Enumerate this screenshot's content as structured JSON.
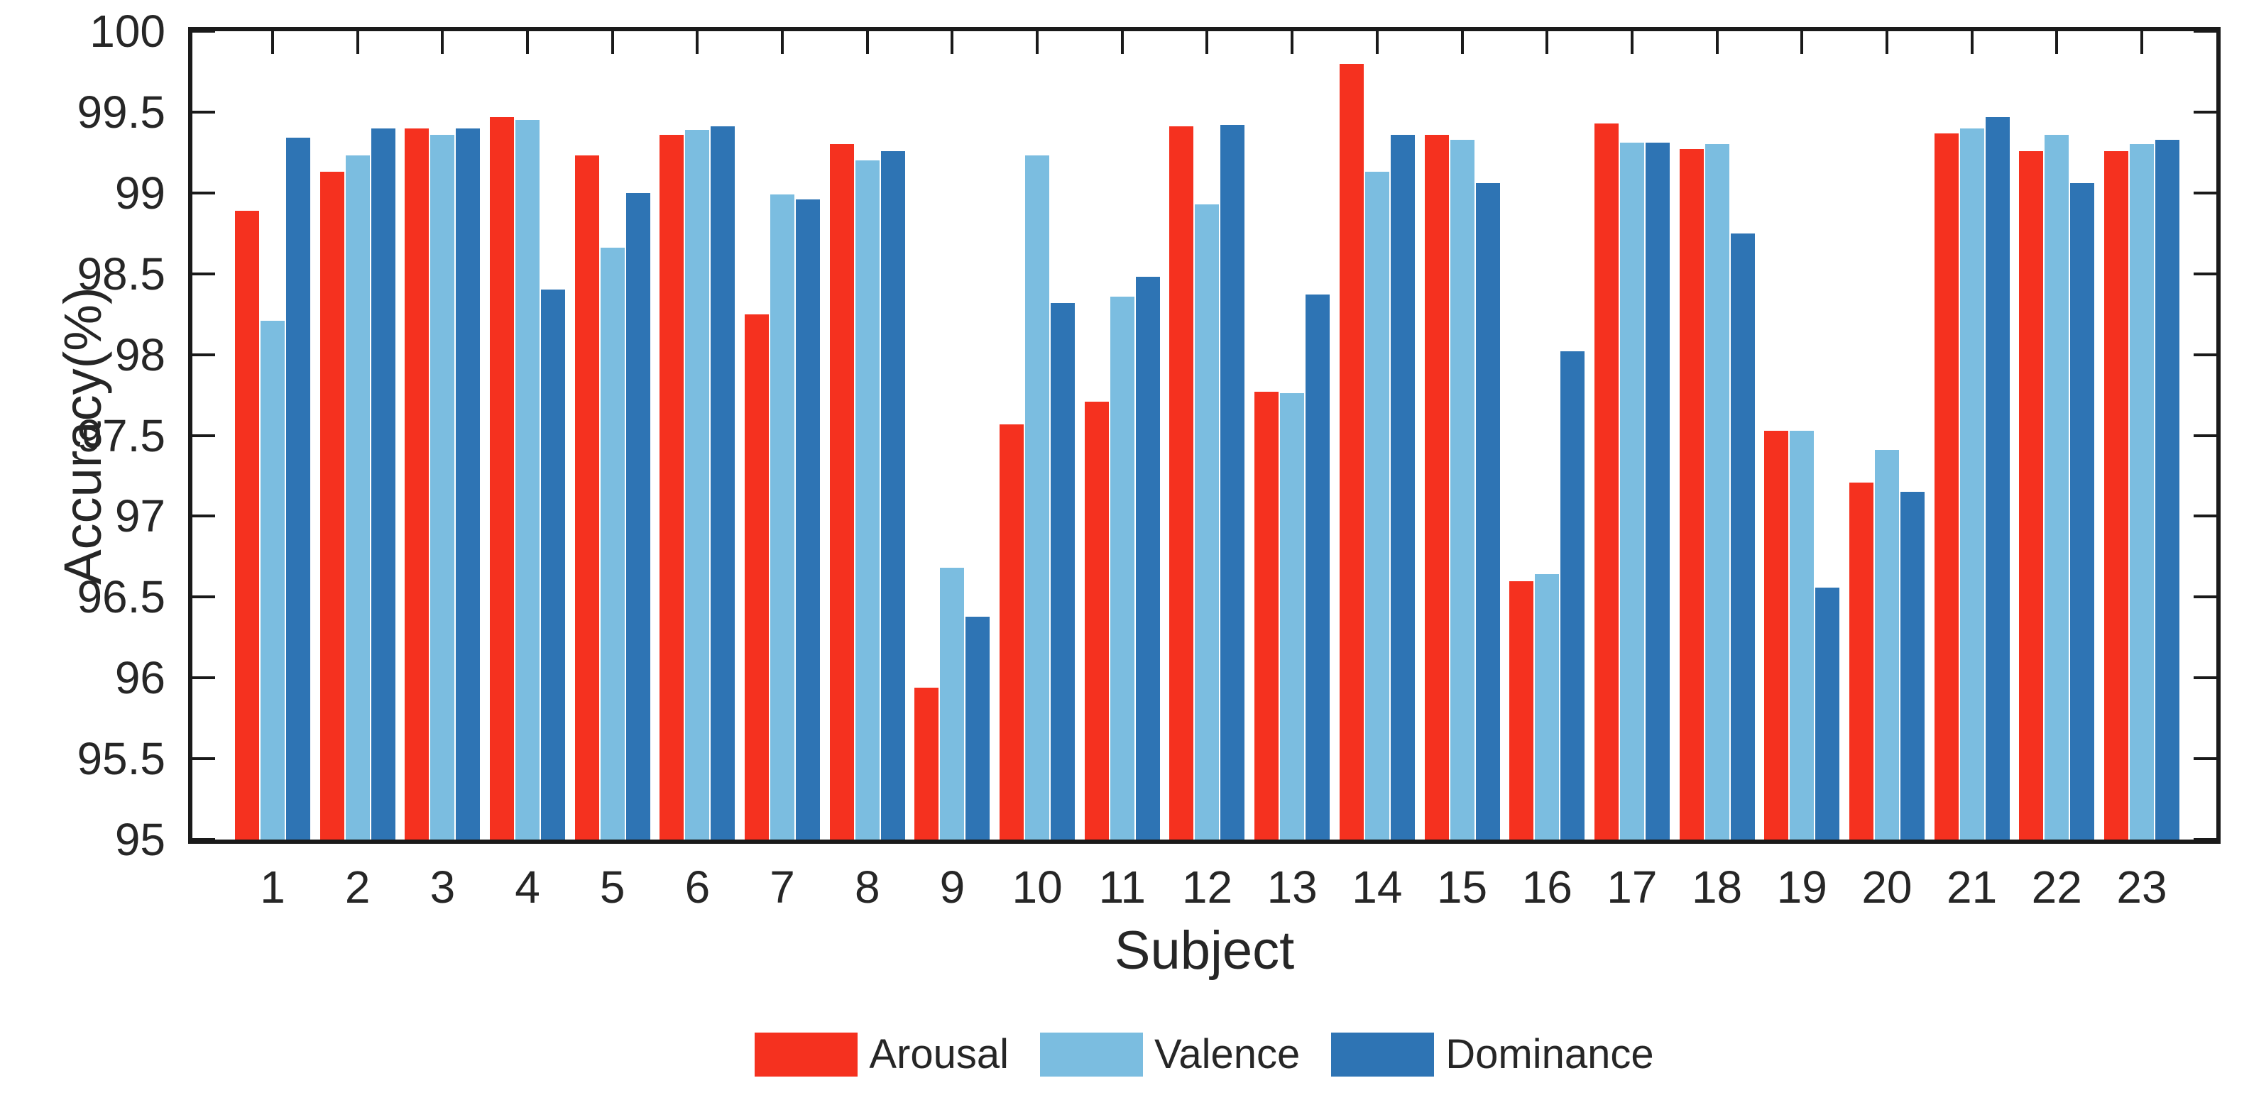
{
  "chart_data": {
    "type": "bar",
    "title": "",
    "xlabel": "Subject",
    "ylabel": "Accuracy(%)",
    "ylim": [
      95,
      100
    ],
    "ytick_step": 0.5,
    "ytick_labels": [
      "95",
      "95.5",
      "96",
      "96.5",
      "97",
      "97.5",
      "98",
      "98.5",
      "99",
      "99.5",
      "100"
    ],
    "grid": false,
    "legend_position": "bottom",
    "axis_color": "#1a1a1a",
    "text_color": "#262626",
    "categories": [
      "1",
      "2",
      "3",
      "4",
      "5",
      "6",
      "7",
      "8",
      "9",
      "10",
      "11",
      "12",
      "13",
      "14",
      "15",
      "16",
      "17",
      "18",
      "19",
      "20",
      "21",
      "22",
      "23"
    ],
    "series": [
      {
        "name": "Arousal",
        "color": "#f5311f",
        "values": [
          98.89,
          99.13,
          99.4,
          99.47,
          99.23,
          99.36,
          98.25,
          99.3,
          95.94,
          97.57,
          97.71,
          99.41,
          97.77,
          99.8,
          99.36,
          96.6,
          99.43,
          99.27,
          97.53,
          97.21,
          99.37,
          99.26,
          99.26
        ]
      },
      {
        "name": "Valence",
        "color": "#7bbde0",
        "values": [
          98.21,
          99.23,
          99.36,
          99.45,
          98.66,
          99.39,
          98.99,
          99.2,
          96.68,
          99.23,
          98.36,
          98.93,
          97.76,
          99.13,
          99.33,
          96.64,
          99.31,
          99.3,
          97.53,
          97.41,
          99.4,
          99.36,
          99.3
        ]
      },
      {
        "name": "Dominance",
        "color": "#2e74b4",
        "values": [
          99.34,
          99.4,
          99.4,
          98.4,
          99.0,
          99.41,
          98.96,
          99.26,
          96.38,
          98.32,
          98.48,
          99.42,
          98.37,
          99.36,
          99.06,
          98.02,
          99.31,
          98.75,
          96.56,
          97.15,
          99.47,
          99.06,
          99.33
        ]
      }
    ]
  }
}
